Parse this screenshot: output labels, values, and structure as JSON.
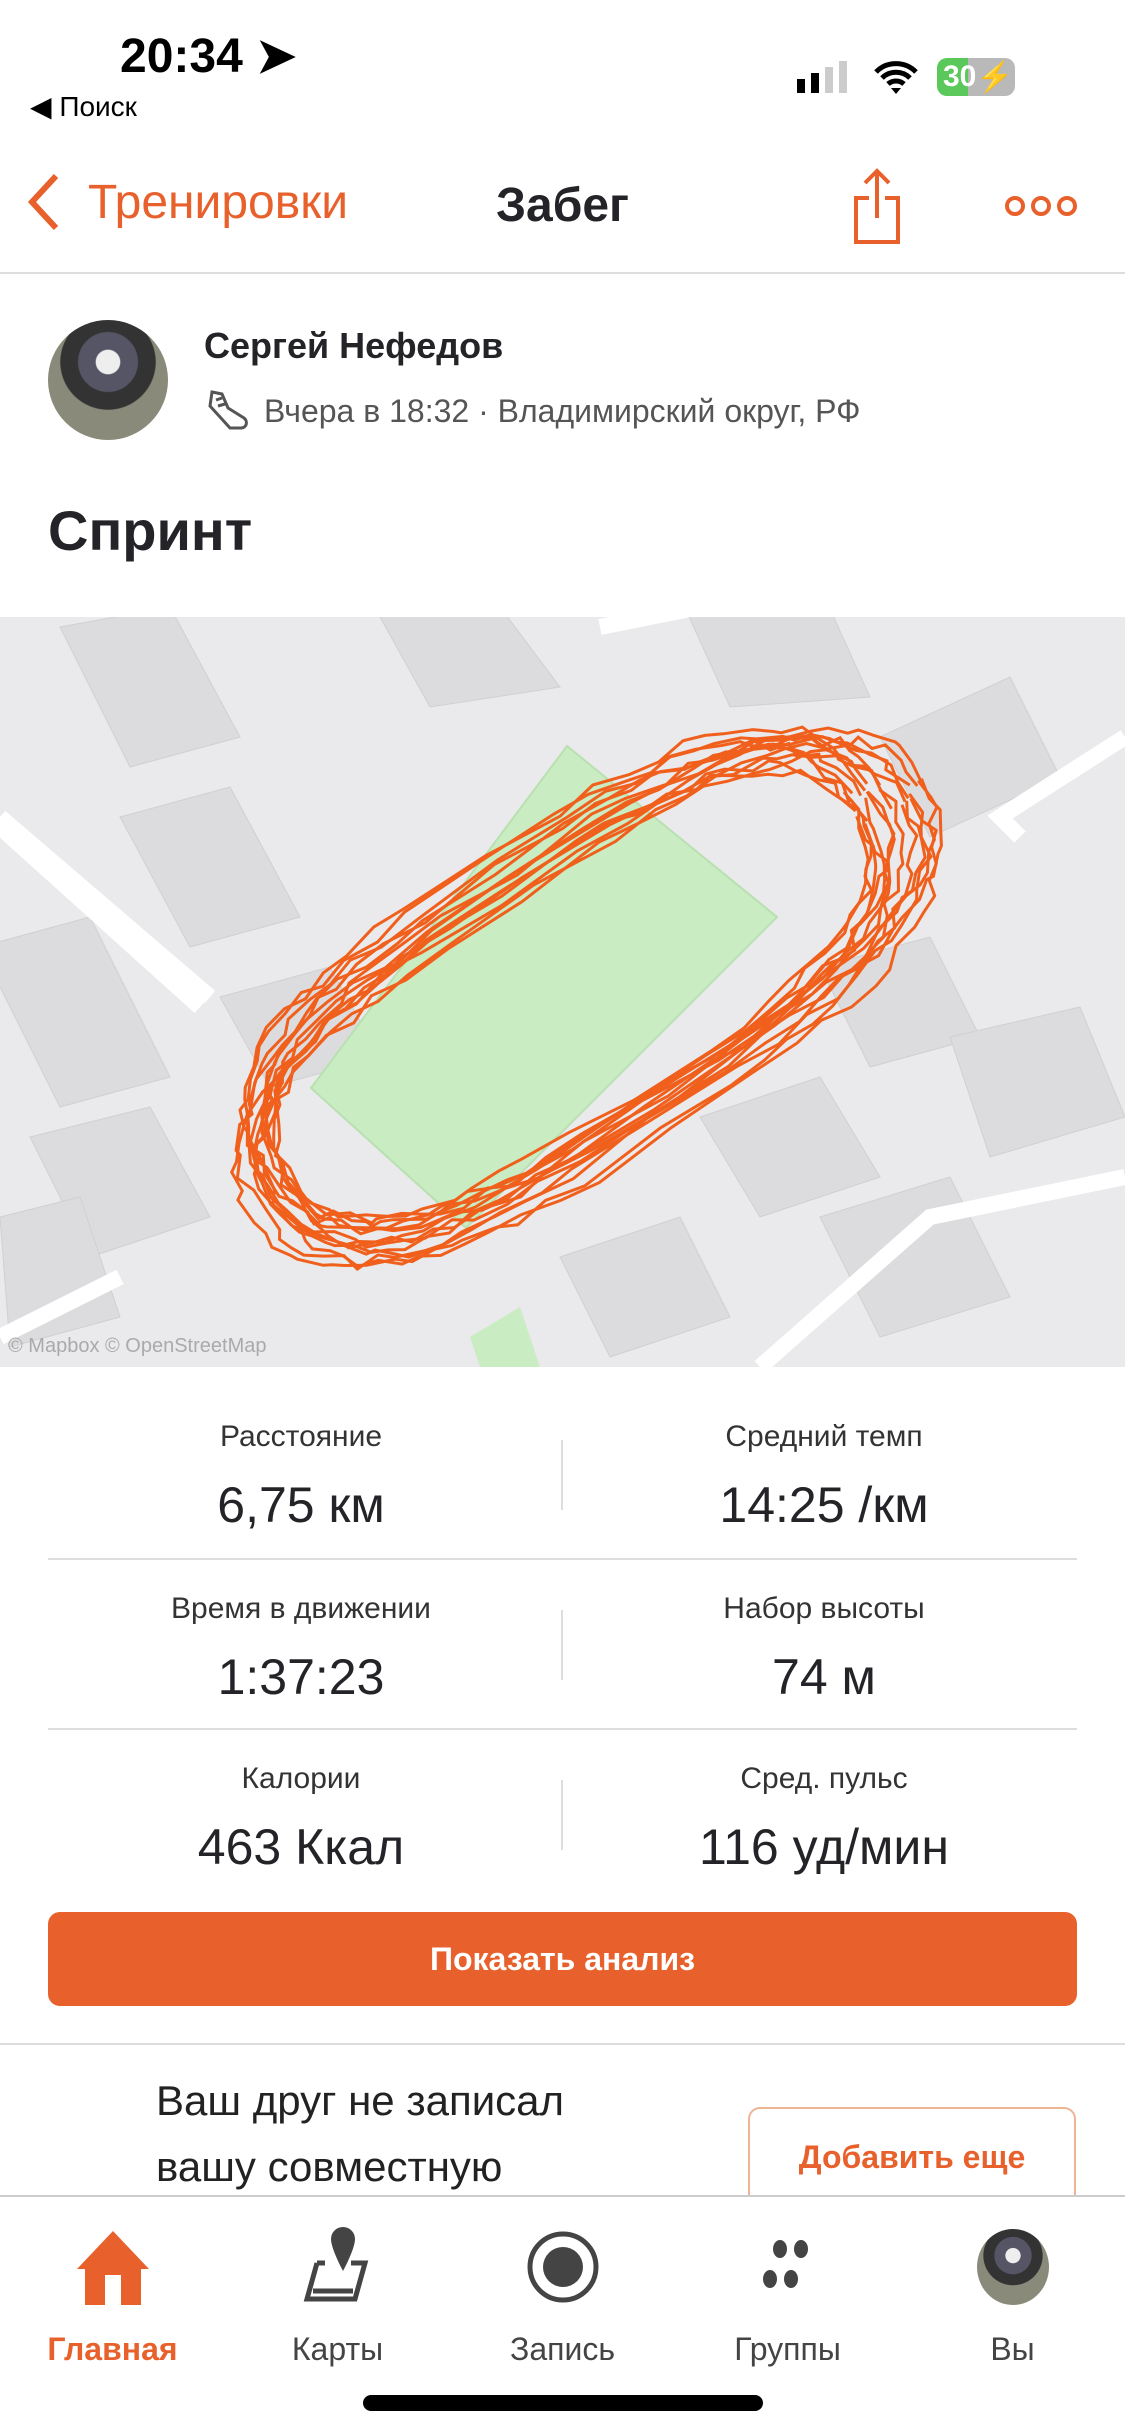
{
  "status_bar": {
    "time": "20:34",
    "back_app": "◀ Поиск",
    "battery": "30"
  },
  "nav": {
    "back_label": "Тренировки",
    "title": "Забег"
  },
  "activity": {
    "athlete": "Сергей Нефедов",
    "meta": "Вчера в 18:32 · Владимирский округ, РФ",
    "title": "Спринт",
    "map_attribution": "© Mapbox © OpenStreetMap"
  },
  "stats": [
    {
      "label": "Расстояние",
      "value": "6,75 км"
    },
    {
      "label": "Средний темп",
      "value": "14:25 /км"
    },
    {
      "label": "Время в движении",
      "value": "1:37:23"
    },
    {
      "label": "Набор высоты",
      "value": "74 м"
    },
    {
      "label": "Калории",
      "value": "463 Ккал"
    },
    {
      "label": "Сред. пульс",
      "value": "116 уд/мин"
    }
  ],
  "analyze_button": "Показать анализ",
  "friend": {
    "line1": "Ваш друг не записал",
    "line2": "вашу совместную",
    "add_button": "Добавить еще"
  },
  "tabs": [
    {
      "label": "Главная",
      "icon": "home-icon"
    },
    {
      "label": "Карты",
      "icon": "map-icon"
    },
    {
      "label": "Запись",
      "icon": "record-icon"
    },
    {
      "label": "Группы",
      "icon": "groups-icon"
    },
    {
      "label": "Вы",
      "icon": "avatar"
    }
  ],
  "colors": {
    "accent": "#e8612c",
    "route": "#f0601c",
    "field": "#c9ecc3"
  }
}
